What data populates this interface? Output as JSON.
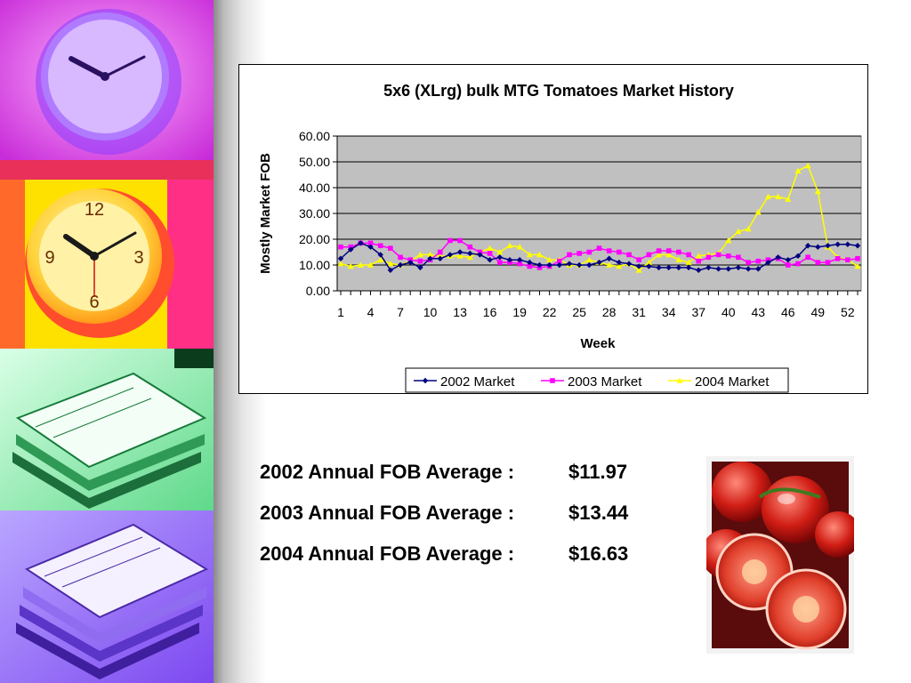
{
  "chart_data": {
    "type": "line",
    "title": "5x6 (XLrg) bulk MTG Tomatoes Market History",
    "xlabel": "Week",
    "ylabel": "Mostly Market FOB",
    "ylim": [
      0,
      60
    ],
    "yticks": [
      "0.00",
      "10.00",
      "20.00",
      "30.00",
      "40.00",
      "50.00",
      "60.00"
    ],
    "x_tick_labels": [
      "1",
      "4",
      "7",
      "10",
      "13",
      "16",
      "19",
      "22",
      "25",
      "28",
      "31",
      "34",
      "37",
      "40",
      "43",
      "46",
      "49",
      "52"
    ],
    "x": [
      1,
      2,
      3,
      4,
      5,
      6,
      7,
      8,
      9,
      10,
      11,
      12,
      13,
      14,
      15,
      16,
      17,
      18,
      19,
      20,
      21,
      22,
      23,
      24,
      25,
      26,
      27,
      28,
      29,
      30,
      31,
      32,
      33,
      34,
      35,
      36,
      37,
      38,
      39,
      40,
      41,
      42,
      43,
      44,
      45,
      46,
      47,
      48,
      49,
      50,
      51,
      52,
      53
    ],
    "grid": "horizontal",
    "legend": "bottom",
    "series": [
      {
        "name": "2002 Market",
        "color": "#000080",
        "marker": "diamond",
        "values": [
          12.5,
          16,
          18.5,
          17,
          14,
          8,
          10,
          11,
          9,
          12.5,
          12.5,
          14,
          15,
          14.5,
          14,
          12,
          13,
          12,
          12,
          11,
          10,
          10,
          10,
          10.5,
          10,
          10,
          11,
          12.5,
          11,
          10.5,
          9.5,
          9.5,
          9,
          9,
          9,
          9,
          8,
          9,
          8.5,
          8.5,
          9,
          8.5,
          8.5,
          11,
          13,
          12,
          13.5,
          17.5,
          17,
          17.5,
          18,
          18,
          17.5
        ]
      },
      {
        "name": "2003 Market",
        "color": "#ff00ff",
        "marker": "square",
        "values": [
          17,
          17,
          18.5,
          18.5,
          17.5,
          16.5,
          13,
          12,
          11.5,
          12,
          15,
          19.5,
          19.5,
          17,
          15,
          14.5,
          11,
          11,
          10.5,
          9.5,
          9,
          9.5,
          11.5,
          14,
          14.5,
          15,
          16.5,
          15.5,
          15,
          14,
          12,
          14,
          15.5,
          15.5,
          15,
          14,
          11.5,
          13,
          14,
          13.5,
          13,
          11,
          11.5,
          12,
          12.5,
          10,
          10.5,
          13,
          11,
          11,
          12.5,
          12,
          12.5
        ]
      },
      {
        "name": "2004 Market",
        "color": "#ffff00",
        "marker": "triangle",
        "values": [
          10.5,
          9.5,
          10,
          10,
          12,
          10.5,
          10,
          11.5,
          14,
          14,
          13.5,
          13.5,
          13.5,
          13,
          15,
          16.5,
          15,
          17.5,
          17,
          14,
          14,
          12,
          12,
          10,
          10,
          12,
          11,
          10,
          9.5,
          10.5,
          8,
          11,
          14,
          14,
          12,
          11,
          13.5,
          14,
          14.5,
          19.5,
          23,
          24,
          30.5,
          36.5,
          36.5,
          35.5,
          46.5,
          48.5,
          38.5,
          17,
          13,
          12,
          9.5
        ]
      }
    ]
  },
  "averages": [
    {
      "label": "2002 Annual FOB Average :",
      "value": "$11.97"
    },
    {
      "label": "2003 Annual FOB Average :",
      "value": "$13.44"
    },
    {
      "label": "2004 Annual FOB Average :",
      "value": "$16.63"
    }
  ],
  "decor": {
    "collage_icons": [
      "clock-icon",
      "clock-icon",
      "book-stack-icon",
      "book-stack-icon"
    ],
    "collage_colors": [
      "#e040ff",
      "#f7d000",
      "#3ec26b",
      "#9b6bff"
    ],
    "photo": "tomato-photo"
  }
}
